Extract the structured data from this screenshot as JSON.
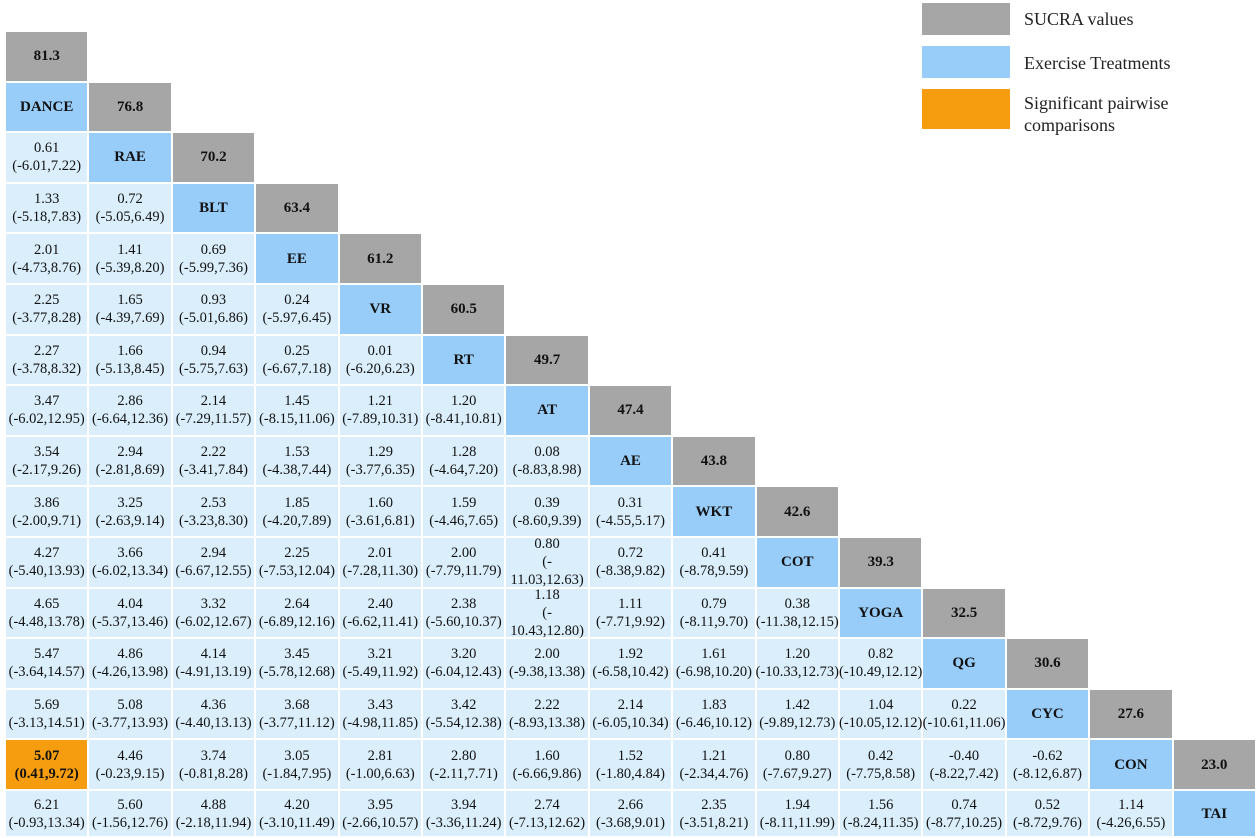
{
  "legend": {
    "sucra_label": "SUCRA values",
    "treatment_label": "Exercise Treatments",
    "significant_label_line1": "Significant pairwise",
    "significant_label_line2": "comparisons",
    "sucra_color": "#a6a6a6",
    "treatment_color": "#99cdf9",
    "significant_color": "#f59d0f",
    "comparison_color": "#daeefb"
  },
  "treatments": [
    {
      "name": "DANCE",
      "sucra": "81.3"
    },
    {
      "name": "RAE",
      "sucra": "76.8"
    },
    {
      "name": "BLT",
      "sucra": "70.2"
    },
    {
      "name": "EE",
      "sucra": "63.4"
    },
    {
      "name": "VR",
      "sucra": "61.2"
    },
    {
      "name": "RT",
      "sucra": "60.5"
    },
    {
      "name": "AT",
      "sucra": "49.7"
    },
    {
      "name": "AE",
      "sucra": "47.4"
    },
    {
      "name": "WKT",
      "sucra": "43.8"
    },
    {
      "name": "COT",
      "sucra": "42.6"
    },
    {
      "name": "YOGA",
      "sucra": "39.3"
    },
    {
      "name": "QG",
      "sucra": "32.5"
    },
    {
      "name": "CYC",
      "sucra": "30.6"
    },
    {
      "name": "CON",
      "sucra": "27.6"
    },
    {
      "name": "TAI",
      "sucra": "23.0"
    }
  ],
  "comparisons": [
    [],
    [
      {
        "est": "0.61",
        "ci": "(-6.01,7.22)"
      }
    ],
    [
      {
        "est": "1.33",
        "ci": "(-5.18,7.83)"
      },
      {
        "est": "0.72",
        "ci": "(-5.05,6.49)"
      }
    ],
    [
      {
        "est": "2.01",
        "ci": "(-4.73,8.76)"
      },
      {
        "est": "1.41",
        "ci": "(-5.39,8.20)"
      },
      {
        "est": "0.69",
        "ci": "(-5.99,7.36)"
      }
    ],
    [
      {
        "est": "2.25",
        "ci": "(-3.77,8.28)"
      },
      {
        "est": "1.65",
        "ci": "(-4.39,7.69)"
      },
      {
        "est": "0.93",
        "ci": "(-5.01,6.86)"
      },
      {
        "est": "0.24",
        "ci": "(-5.97,6.45)"
      }
    ],
    [
      {
        "est": "2.27",
        "ci": "(-3.78,8.32)"
      },
      {
        "est": "1.66",
        "ci": "(-5.13,8.45)"
      },
      {
        "est": "0.94",
        "ci": "(-5.75,7.63)"
      },
      {
        "est": "0.25",
        "ci": "(-6.67,7.18)"
      },
      {
        "est": "0.01",
        "ci": "(-6.20,6.23)"
      }
    ],
    [
      {
        "est": "3.47",
        "ci": "(-6.02,12.95)"
      },
      {
        "est": "2.86",
        "ci": "(-6.64,12.36)"
      },
      {
        "est": "2.14",
        "ci": "(-7.29,11.57)"
      },
      {
        "est": "1.45",
        "ci": "(-8.15,11.06)"
      },
      {
        "est": "1.21",
        "ci": "(-7.89,10.31)"
      },
      {
        "est": "1.20",
        "ci": "(-8.41,10.81)"
      }
    ],
    [
      {
        "est": "3.54",
        "ci": "(-2.17,9.26)"
      },
      {
        "est": "2.94",
        "ci": "(-2.81,8.69)"
      },
      {
        "est": "2.22",
        "ci": "(-3.41,7.84)"
      },
      {
        "est": "1.53",
        "ci": "(-4.38,7.44)"
      },
      {
        "est": "1.29",
        "ci": "(-3.77,6.35)"
      },
      {
        "est": "1.28",
        "ci": "(-4.64,7.20)"
      },
      {
        "est": "0.08",
        "ci": "(-8.83,8.98)"
      }
    ],
    [
      {
        "est": "3.86",
        "ci": "(-2.00,9.71)"
      },
      {
        "est": "3.25",
        "ci": "(-2.63,9.14)"
      },
      {
        "est": "2.53",
        "ci": "(-3.23,8.30)"
      },
      {
        "est": "1.85",
        "ci": "(-4.20,7.89)"
      },
      {
        "est": "1.60",
        "ci": "(-3.61,6.81)"
      },
      {
        "est": "1.59",
        "ci": "(-4.46,7.65)"
      },
      {
        "est": "0.39",
        "ci": "(-8.60,9.39)"
      },
      {
        "est": "0.31",
        "ci": "(-4.55,5.17)"
      }
    ],
    [
      {
        "est": "4.27",
        "ci": "(-5.40,13.93)"
      },
      {
        "est": "3.66",
        "ci": "(-6.02,13.34)"
      },
      {
        "est": "2.94",
        "ci": "(-6.67,12.55)"
      },
      {
        "est": "2.25",
        "ci": "(-7.53,12.04)"
      },
      {
        "est": "2.01",
        "ci": "(-7.28,11.30)"
      },
      {
        "est": "2.00",
        "ci": "(-7.79,11.79)"
      },
      {
        "est": "0.80",
        "ci": "(-\n11.03,12.63)"
      },
      {
        "est": "0.72",
        "ci": "(-8.38,9.82)"
      },
      {
        "est": "0.41",
        "ci": "(-8.78,9.59)"
      }
    ],
    [
      {
        "est": "4.65",
        "ci": "(-4.48,13.78)"
      },
      {
        "est": "4.04",
        "ci": "(-5.37,13.46)"
      },
      {
        "est": "3.32",
        "ci": "(-6.02,12.67)"
      },
      {
        "est": "2.64",
        "ci": "(-6.89,12.16)"
      },
      {
        "est": "2.40",
        "ci": "(-6.62,11.41)"
      },
      {
        "est": "2.38",
        "ci": "(-5.60,10.37)"
      },
      {
        "est": "1.18",
        "ci": "(-\n10.43,12.80)"
      },
      {
        "est": "1.11",
        "ci": "(-7.71,9.92)"
      },
      {
        "est": "0.79",
        "ci": "(-8.11,9.70)"
      },
      {
        "est": "0.38",
        "ci": "(-11.38,12.15)"
      }
    ],
    [
      {
        "est": "5.47",
        "ci": "(-3.64,14.57)"
      },
      {
        "est": "4.86",
        "ci": "(-4.26,13.98)"
      },
      {
        "est": "4.14",
        "ci": "(-4.91,13.19)"
      },
      {
        "est": "3.45",
        "ci": "(-5.78,12.68)"
      },
      {
        "est": "3.21",
        "ci": "(-5.49,11.92)"
      },
      {
        "est": "3.20",
        "ci": "(-6.04,12.43)"
      },
      {
        "est": "2.00",
        "ci": "(-9.38,13.38)"
      },
      {
        "est": "1.92",
        "ci": "(-6.58,10.42)"
      },
      {
        "est": "1.61",
        "ci": "(-6.98,10.20)"
      },
      {
        "est": "1.20",
        "ci": "(-10.33,12.73)"
      },
      {
        "est": "0.82",
        "ci": "(-10.49,12.12)"
      }
    ],
    [
      {
        "est": "5.69",
        "ci": "(-3.13,14.51)"
      },
      {
        "est": "5.08",
        "ci": "(-3.77,13.93)"
      },
      {
        "est": "4.36",
        "ci": "(-4.40,13.13)"
      },
      {
        "est": "3.68",
        "ci": "(-3.77,11.12)"
      },
      {
        "est": "3.43",
        "ci": "(-4.98,11.85)"
      },
      {
        "est": "3.42",
        "ci": "(-5.54,12.38)"
      },
      {
        "est": "2.22",
        "ci": "(-8.93,13.38)"
      },
      {
        "est": "2.14",
        "ci": "(-6.05,10.34)"
      },
      {
        "est": "1.83",
        "ci": "(-6.46,10.12)"
      },
      {
        "est": "1.42",
        "ci": "(-9.89,12.73)"
      },
      {
        "est": "1.04",
        "ci": "(-10.05,12.12)"
      },
      {
        "est": "0.22",
        "ci": "(-10.61,11.06)"
      }
    ],
    [
      {
        "est": "5.07",
        "ci": "(0.41,9.72)",
        "sig": true
      },
      {
        "est": "4.46",
        "ci": "(-0.23,9.15)"
      },
      {
        "est": "3.74",
        "ci": "(-0.81,8.28)"
      },
      {
        "est": "3.05",
        "ci": "(-1.84,7.95)"
      },
      {
        "est": "2.81",
        "ci": "(-1.00,6.63)"
      },
      {
        "est": "2.80",
        "ci": "(-2.11,7.71)"
      },
      {
        "est": "1.60",
        "ci": "(-6.66,9.86)"
      },
      {
        "est": "1.52",
        "ci": "(-1.80,4.84)"
      },
      {
        "est": "1.21",
        "ci": "(-2.34,4.76)"
      },
      {
        "est": "0.80",
        "ci": "(-7.67,9.27)"
      },
      {
        "est": "0.42",
        "ci": "(-7.75,8.58)"
      },
      {
        "est": "-0.40",
        "ci": "(-8.22,7.42)"
      },
      {
        "est": "-0.62",
        "ci": "(-8.12,6.87)"
      }
    ],
    [
      {
        "est": "6.21",
        "ci": "(-0.93,13.34)"
      },
      {
        "est": "5.60",
        "ci": "(-1.56,12.76)"
      },
      {
        "est": "4.88",
        "ci": "(-2.18,11.94)"
      },
      {
        "est": "4.20",
        "ci": "(-3.10,11.49)"
      },
      {
        "est": "3.95",
        "ci": "(-2.66,10.57)"
      },
      {
        "est": "3.94",
        "ci": "(-3.36,11.24)"
      },
      {
        "est": "2.74",
        "ci": "(-7.13,12.62)"
      },
      {
        "est": "2.66",
        "ci": "(-3.68,9.01)"
      },
      {
        "est": "2.35",
        "ci": "(-3.51,8.21)"
      },
      {
        "est": "1.94",
        "ci": "(-8.11,11.99)"
      },
      {
        "est": "1.56",
        "ci": "(-8.24,11.35)"
      },
      {
        "est": "0.74",
        "ci": "(-8.77,10.25)"
      },
      {
        "est": "0.52",
        "ci": "(-8.72,9.76)"
      },
      {
        "est": "1.14",
        "ci": "(-4.26,6.55)"
      }
    ]
  ]
}
